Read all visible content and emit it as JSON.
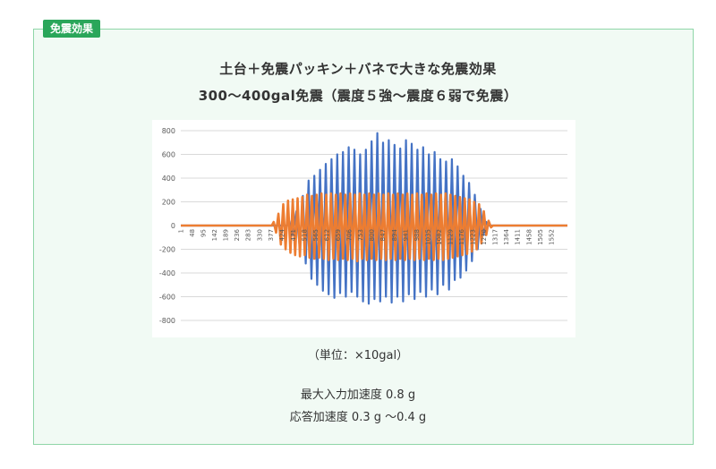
{
  "badge": "免震効果",
  "heading": {
    "line1": "土台＋免震パッキン＋バネで大きな免震効果",
    "line2": "300〜400gal免震（震度５強〜震度６弱で免震）"
  },
  "unit_note": "（単位：×10gal）",
  "results": {
    "max_input": "最大入力加速度 0.8 g",
    "response": "応答加速度 0.3 g 〜0.4 g"
  },
  "colors": {
    "input_series": "#4472c4",
    "response_series": "#ed7d31",
    "panel_border": "#8fd6a8",
    "badge_bg": "#2aa65a"
  },
  "chart_data": {
    "type": "line",
    "title": "",
    "xlabel": "",
    "ylabel": "",
    "ylim": [
      -800,
      800
    ],
    "yticks": [
      800,
      600,
      400,
      200,
      0,
      -200,
      -400,
      -600,
      -800
    ],
    "xlim": [
      1,
      1620
    ],
    "xticks": [
      "1",
      "48",
      "95",
      "142",
      "189",
      "236",
      "283",
      "330",
      "377",
      "424",
      "471",
      "518",
      "565",
      "612",
      "659",
      "706",
      "753",
      "800",
      "847",
      "894",
      "941",
      "988",
      "1035",
      "1082",
      "1129",
      "1176",
      "1223",
      "1270",
      "1317",
      "1364",
      "1411",
      "1458",
      "1505",
      "1552"
    ],
    "grid": "horizontal",
    "legend": "none",
    "series": [
      {
        "color": "#4472c4",
        "peaks": [
          {
            "x": 455,
            "y": 40
          },
          {
            "x": 470,
            "y": -80
          },
          {
            "x": 485,
            "y": 120
          },
          {
            "x": 500,
            "y": -200
          },
          {
            "x": 512,
            "y": 250
          },
          {
            "x": 524,
            "y": -320
          },
          {
            "x": 536,
            "y": 380
          },
          {
            "x": 548,
            "y": -450
          },
          {
            "x": 560,
            "y": 420
          },
          {
            "x": 572,
            "y": -500
          },
          {
            "x": 584,
            "y": 470
          },
          {
            "x": 596,
            "y": -550
          },
          {
            "x": 608,
            "y": 520
          },
          {
            "x": 620,
            "y": -580
          },
          {
            "x": 632,
            "y": 560
          },
          {
            "x": 644,
            "y": -610
          },
          {
            "x": 656,
            "y": 600
          },
          {
            "x": 668,
            "y": -570
          },
          {
            "x": 680,
            "y": 620
          },
          {
            "x": 692,
            "y": -600
          },
          {
            "x": 704,
            "y": 660
          },
          {
            "x": 716,
            "y": -560
          },
          {
            "x": 728,
            "y": 640
          },
          {
            "x": 740,
            "y": -600
          },
          {
            "x": 752,
            "y": 600
          },
          {
            "x": 764,
            "y": -640
          },
          {
            "x": 776,
            "y": 640
          },
          {
            "x": 788,
            "y": -660
          },
          {
            "x": 800,
            "y": 710
          },
          {
            "x": 812,
            "y": -620
          },
          {
            "x": 824,
            "y": 780
          },
          {
            "x": 836,
            "y": -640
          },
          {
            "x": 848,
            "y": 700
          },
          {
            "x": 860,
            "y": -600
          },
          {
            "x": 872,
            "y": 720
          },
          {
            "x": 884,
            "y": -650
          },
          {
            "x": 896,
            "y": 680
          },
          {
            "x": 908,
            "y": -600
          },
          {
            "x": 920,
            "y": 650
          },
          {
            "x": 932,
            "y": -640
          },
          {
            "x": 944,
            "y": 720
          },
          {
            "x": 956,
            "y": -580
          },
          {
            "x": 968,
            "y": 690
          },
          {
            "x": 980,
            "y": -620
          },
          {
            "x": 992,
            "y": 640
          },
          {
            "x": 1004,
            "y": -560
          },
          {
            "x": 1016,
            "y": 660
          },
          {
            "x": 1028,
            "y": -600
          },
          {
            "x": 1040,
            "y": 600
          },
          {
            "x": 1052,
            "y": -540
          },
          {
            "x": 1064,
            "y": 620
          },
          {
            "x": 1076,
            "y": -580
          },
          {
            "x": 1088,
            "y": 560
          },
          {
            "x": 1100,
            "y": -500
          },
          {
            "x": 1112,
            "y": 540
          },
          {
            "x": 1124,
            "y": -540
          },
          {
            "x": 1136,
            "y": 560
          },
          {
            "x": 1148,
            "y": -460
          },
          {
            "x": 1160,
            "y": 500
          },
          {
            "x": 1172,
            "y": -440
          },
          {
            "x": 1184,
            "y": 420
          },
          {
            "x": 1196,
            "y": -380
          },
          {
            "x": 1208,
            "y": 360
          },
          {
            "x": 1220,
            "y": -300
          },
          {
            "x": 1232,
            "y": 260
          },
          {
            "x": 1244,
            "y": -200
          },
          {
            "x": 1256,
            "y": 140
          },
          {
            "x": 1268,
            "y": -80
          },
          {
            "x": 1280,
            "y": 30
          }
        ]
      },
      {
        "color": "#ed7d31",
        "peaks": [
          {
            "x": 390,
            "y": 30
          },
          {
            "x": 400,
            "y": -60
          },
          {
            "x": 410,
            "y": 100
          },
          {
            "x": 420,
            "y": -160
          },
          {
            "x": 430,
            "y": 180
          },
          {
            "x": 440,
            "y": -200
          },
          {
            "x": 450,
            "y": 210
          },
          {
            "x": 460,
            "y": -230
          },
          {
            "x": 470,
            "y": 220
          },
          {
            "x": 480,
            "y": -250
          },
          {
            "x": 490,
            "y": 230
          },
          {
            "x": 500,
            "y": -260
          },
          {
            "x": 510,
            "y": 240
          },
          {
            "x": 520,
            "y": -250
          },
          {
            "x": 530,
            "y": 260
          },
          {
            "x": 540,
            "y": -270
          },
          {
            "x": 550,
            "y": 250
          },
          {
            "x": 560,
            "y": -280
          },
          {
            "x": 570,
            "y": 260
          },
          {
            "x": 580,
            "y": -270
          },
          {
            "x": 590,
            "y": 270
          },
          {
            "x": 600,
            "y": -280
          },
          {
            "x": 610,
            "y": 260
          },
          {
            "x": 620,
            "y": -290
          },
          {
            "x": 630,
            "y": 270
          },
          {
            "x": 640,
            "y": -280
          },
          {
            "x": 650,
            "y": 260
          },
          {
            "x": 660,
            "y": -290
          },
          {
            "x": 670,
            "y": 270
          },
          {
            "x": 680,
            "y": -280
          },
          {
            "x": 690,
            "y": 260
          },
          {
            "x": 700,
            "y": -290
          },
          {
            "x": 710,
            "y": 270
          },
          {
            "x": 720,
            "y": -280
          },
          {
            "x": 730,
            "y": 260
          },
          {
            "x": 740,
            "y": -300
          },
          {
            "x": 750,
            "y": 270
          },
          {
            "x": 760,
            "y": -280
          },
          {
            "x": 770,
            "y": 260
          },
          {
            "x": 780,
            "y": -290
          },
          {
            "x": 790,
            "y": 270
          },
          {
            "x": 800,
            "y": -280
          },
          {
            "x": 810,
            "y": 260
          },
          {
            "x": 820,
            "y": -290
          },
          {
            "x": 830,
            "y": 270
          },
          {
            "x": 840,
            "y": -280
          },
          {
            "x": 850,
            "y": 260
          },
          {
            "x": 860,
            "y": -290
          },
          {
            "x": 870,
            "y": 270
          },
          {
            "x": 880,
            "y": -280
          },
          {
            "x": 890,
            "y": 260
          },
          {
            "x": 900,
            "y": -290
          },
          {
            "x": 910,
            "y": 270
          },
          {
            "x": 920,
            "y": -280
          },
          {
            "x": 930,
            "y": 260
          },
          {
            "x": 940,
            "y": -290
          },
          {
            "x": 950,
            "y": 270
          },
          {
            "x": 960,
            "y": -280
          },
          {
            "x": 970,
            "y": 260
          },
          {
            "x": 980,
            "y": -290
          },
          {
            "x": 990,
            "y": 270
          },
          {
            "x": 1000,
            "y": -280
          },
          {
            "x": 1010,
            "y": 260
          },
          {
            "x": 1020,
            "y": -290
          },
          {
            "x": 1030,
            "y": 270
          },
          {
            "x": 1040,
            "y": -280
          },
          {
            "x": 1050,
            "y": 260
          },
          {
            "x": 1060,
            "y": -290
          },
          {
            "x": 1070,
            "y": 270
          },
          {
            "x": 1080,
            "y": -280
          },
          {
            "x": 1090,
            "y": 260
          },
          {
            "x": 1100,
            "y": -290
          },
          {
            "x": 1110,
            "y": 270
          },
          {
            "x": 1120,
            "y": -280
          },
          {
            "x": 1130,
            "y": 260
          },
          {
            "x": 1140,
            "y": -270
          },
          {
            "x": 1150,
            "y": 250
          },
          {
            "x": 1160,
            "y": -260
          },
          {
            "x": 1170,
            "y": 240
          },
          {
            "x": 1180,
            "y": -250
          },
          {
            "x": 1190,
            "y": 230
          },
          {
            "x": 1200,
            "y": -240
          },
          {
            "x": 1210,
            "y": 220
          },
          {
            "x": 1220,
            "y": -220
          },
          {
            "x": 1230,
            "y": 200
          },
          {
            "x": 1240,
            "y": -200
          },
          {
            "x": 1250,
            "y": 180
          },
          {
            "x": 1260,
            "y": -150
          },
          {
            "x": 1270,
            "y": 120
          },
          {
            "x": 1280,
            "y": -80
          },
          {
            "x": 1290,
            "y": 40
          },
          {
            "x": 1300,
            "y": -15
          }
        ]
      }
    ]
  }
}
